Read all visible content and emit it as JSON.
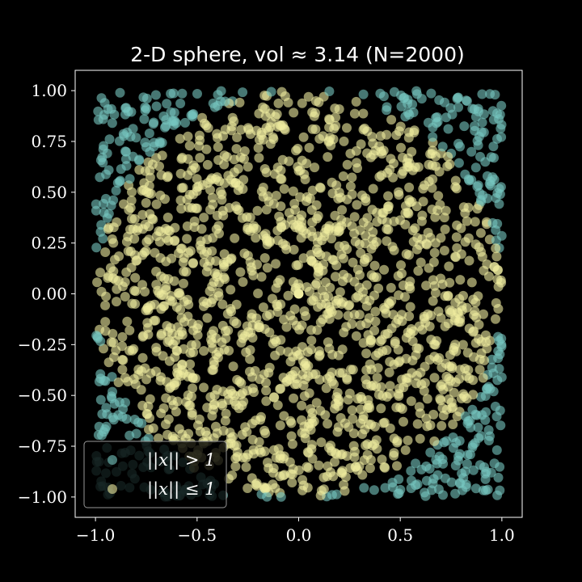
{
  "chart_data": {
    "type": "scatter",
    "title": "2-D sphere, vol ≈ 3.14 (N=2000)",
    "xlabel": "",
    "ylabel": "",
    "xlim": [
      -1.1,
      1.1
    ],
    "ylim": [
      -1.1,
      1.1
    ],
    "x_ticks": [
      "−1.0",
      "−0.5",
      "0.0",
      "0.5",
      "1.0"
    ],
    "x_tick_values": [
      -1.0,
      -0.5,
      0.0,
      0.5,
      1.0
    ],
    "y_ticks": [
      "1.00",
      "0.75",
      "0.50",
      "0.25",
      "0.00",
      "−0.25",
      "−0.50",
      "−0.75",
      "−1.00"
    ],
    "y_tick_values": [
      1.0,
      0.75,
      0.5,
      0.25,
      0.0,
      -0.25,
      -0.5,
      -0.75,
      -1.0
    ],
    "grid": false,
    "legend_position": "lower-left",
    "n_points": 2000,
    "highlight_point": {
      "x": 0.0,
      "y": 0.0
    },
    "series": [
      {
        "name": "||x|| > 1",
        "color": "#76c7c0",
        "rule": "outside unit circle"
      },
      {
        "name": "||x|| ≤ 1",
        "color": "#f0eda0",
        "rule": "inside unit circle"
      }
    ]
  }
}
